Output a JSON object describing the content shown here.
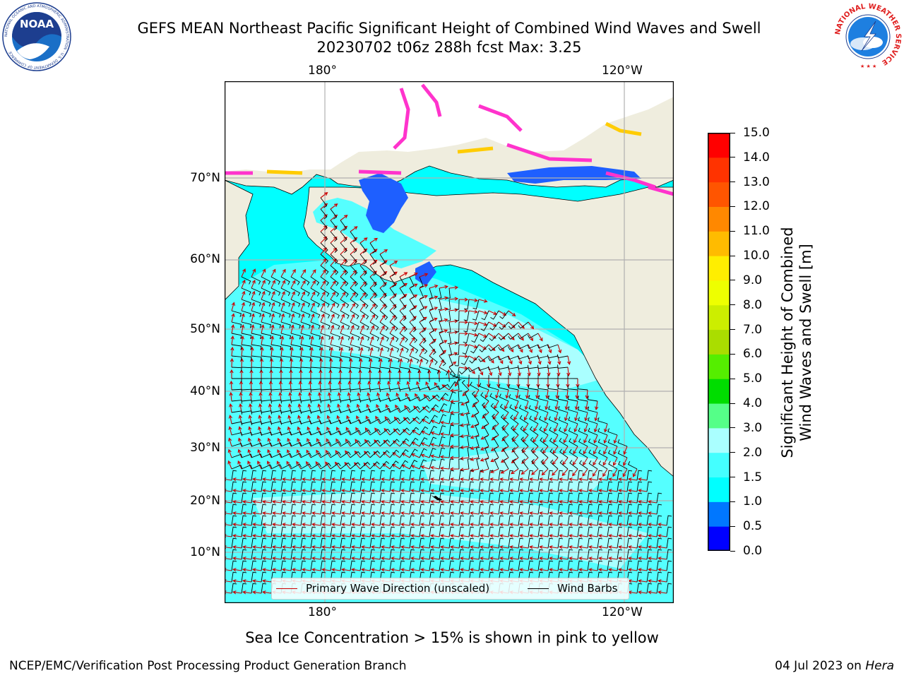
{
  "title": {
    "line1": "GEFS MEAN Northeast Pacific Significant Height of Combined Wind Waves and Swell",
    "line2": "20230702 t06z 288h fcst   Max: 3.25"
  },
  "map": {
    "lon_labels_top": [
      "180°",
      "120°W"
    ],
    "lon_labels_bottom": [
      "180°",
      "120°W"
    ],
    "lat_labels": [
      "70°N",
      "60°N",
      "50°N",
      "40°N",
      "30°N",
      "20°N",
      "10°N"
    ],
    "land_color": "#efedde",
    "ocean_colors": [
      "#00ffff",
      "#55ffff",
      "#aaffff"
    ],
    "ice_colors": [
      "#ff33cc",
      "#ffcc00",
      "#0055ff"
    ],
    "grid": true
  },
  "legend": {
    "items": [
      {
        "label": "Primary Wave Direction (unscaled)",
        "color": "#cc0000"
      },
      {
        "label": "Wind Barbs",
        "color": "#000000"
      }
    ],
    "placement": "bottom-center"
  },
  "colorbar": {
    "title_line1": "Significant Height of Combined",
    "title_line2": "Wind Waves and Swell [m]",
    "tick_labels": [
      "0.0",
      "0.5",
      "1.0",
      "1.5",
      "2.0",
      "3.0",
      "4.0",
      "5.0",
      "6.0",
      "7.0",
      "8.0",
      "9.0",
      "10.0",
      "11.0",
      "12.0",
      "13.0",
      "14.0",
      "15.0"
    ],
    "colors": [
      "#0000ff",
      "#0077ff",
      "#00ffff",
      "#44ffff",
      "#aaffff",
      "#55ff88",
      "#00dd00",
      "#55ee00",
      "#aadd00",
      "#ccee00",
      "#eeff00",
      "#ffee00",
      "#ffbb00",
      "#ff8800",
      "#ff5500",
      "#ff3300",
      "#ff0000"
    ]
  },
  "caption": "Sea Ice Concentration > 15% is shown in pink to yellow",
  "footer": {
    "left": "NCEP/EMC/Verification Post Processing Product Generation Branch",
    "right_date": "04 Jul 2023 on",
    "right_host": "Hera"
  },
  "logos": {
    "noaa": {
      "text": "NOAA",
      "ring_text": "NATIONAL OCEANIC AND ATMOSPHERIC ADMINISTRATION · U.S. DEPARTMENT OF COMMERCE"
    },
    "nws": {
      "ring_text": "NATIONAL WEATHER SERVICE"
    }
  }
}
